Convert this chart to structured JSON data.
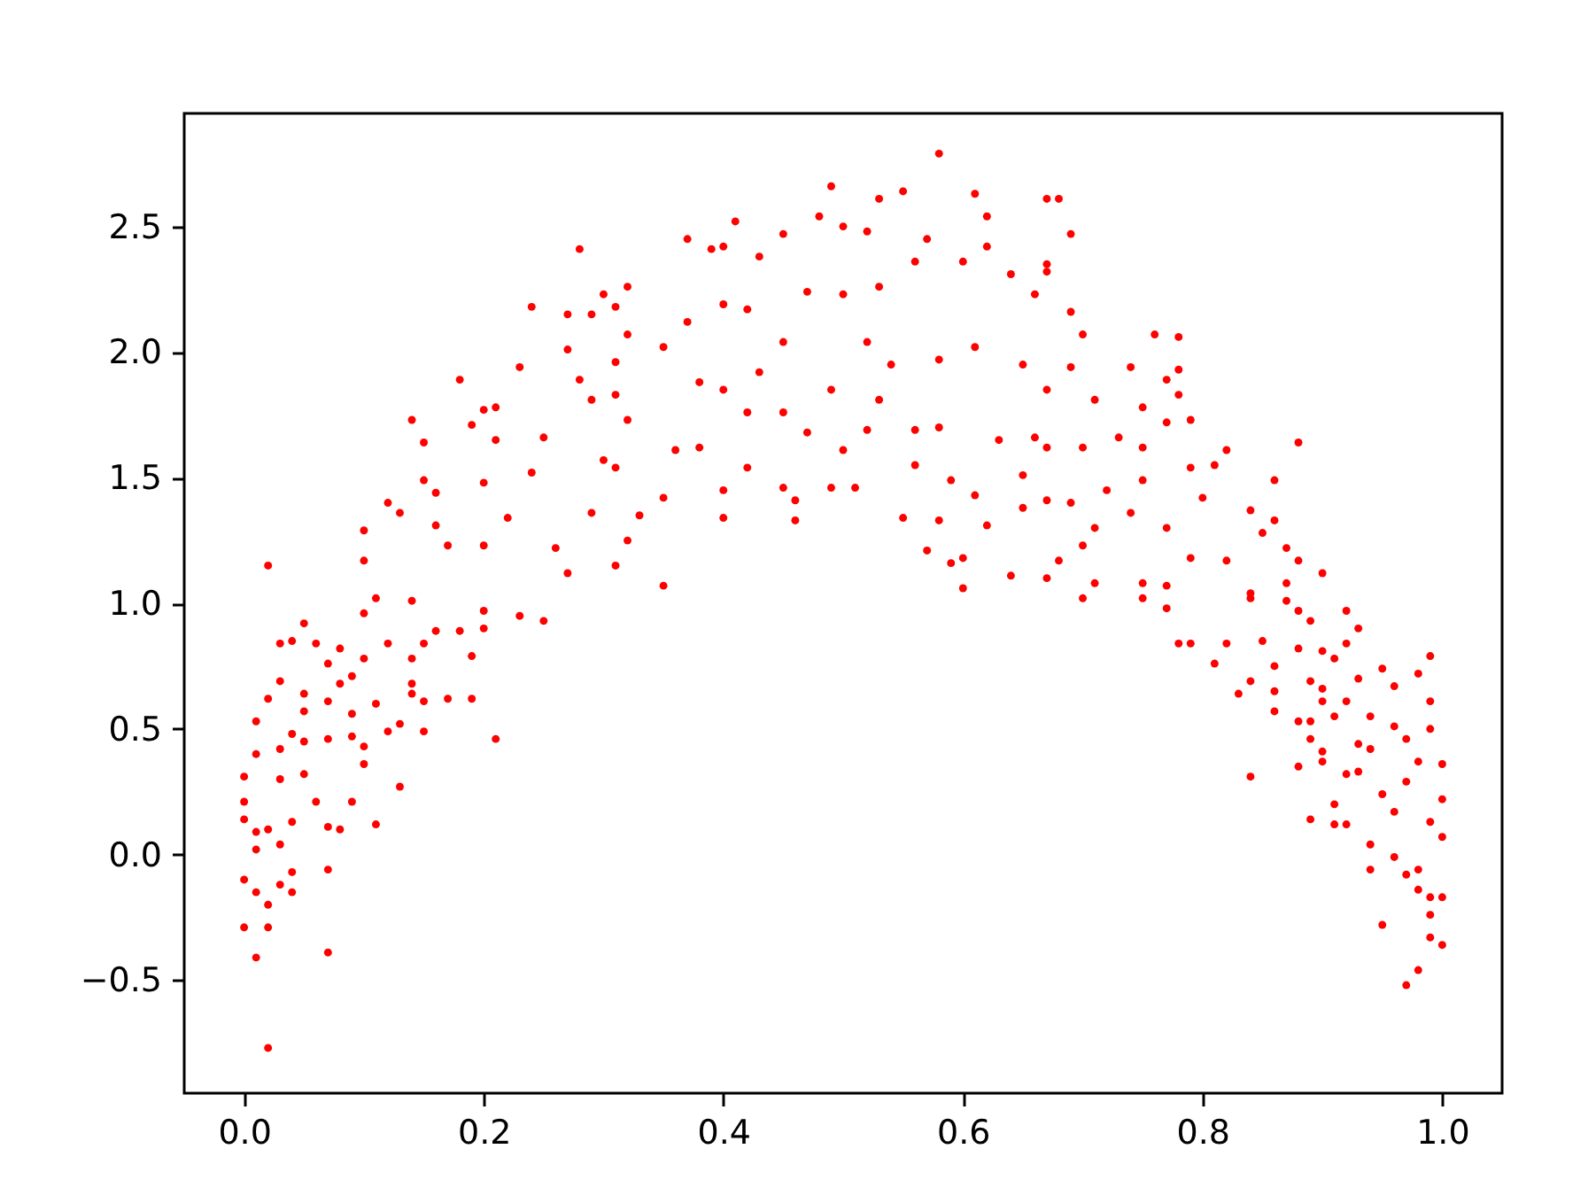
{
  "chart_data": {
    "type": "scatter",
    "color": "#ff0000",
    "marker": "circle",
    "xlim": [
      -0.05,
      1.05
    ],
    "ylim": [
      -0.95,
      2.95
    ],
    "xticks": [
      {
        "value": 0,
        "label": "0.0"
      },
      {
        "value": 0.2,
        "label": "0.2"
      },
      {
        "value": 0.4,
        "label": "0.4"
      },
      {
        "value": 0.6,
        "label": "0.6"
      },
      {
        "value": 0.8,
        "label": "0.8"
      },
      {
        "value": 1,
        "label": "1.0"
      }
    ],
    "yticks": [
      {
        "value": -0.5,
        "label": "−0.5"
      },
      {
        "value": 0,
        "label": "0.0"
      },
      {
        "value": 0.5,
        "label": "0.5"
      },
      {
        "value": 1,
        "label": "1.0"
      },
      {
        "value": 1.5,
        "label": "1.5"
      },
      {
        "value": 2,
        "label": "2.0"
      },
      {
        "value": 2.5,
        "label": "2.5"
      }
    ],
    "x": [
      0.02,
      0.01,
      0.07,
      0.0,
      0.02,
      0.02,
      0.0,
      0.01,
      0.03,
      0.04,
      0.04,
      0.07,
      0.01,
      0.03,
      0.0,
      0.0,
      0.0,
      0.01,
      0.01,
      0.02,
      0.01,
      0.02,
      0.04,
      0.07,
      0.08,
      0.11,
      0.13,
      0.1,
      0.09,
      0.06,
      0.05,
      0.03,
      0.03,
      0.04,
      0.05,
      0.07,
      0.09,
      0.1,
      0.12,
      0.13,
      0.15,
      0.21,
      0.17,
      0.19,
      0.19,
      0.15,
      0.14,
      0.14,
      0.08,
      0.07,
      0.05,
      0.03,
      0.05,
      0.09,
      0.11,
      0.03,
      0.04,
      0.05,
      0.06,
      0.07,
      0.08,
      0.09,
      0.1,
      0.12,
      0.14,
      0.15,
      0.16,
      0.18,
      0.2,
      0.23,
      0.25,
      0.1,
      0.11,
      0.14,
      0.2,
      0.02,
      0.1,
      0.1,
      0.12,
      0.13,
      0.15,
      0.14,
      0.15,
      0.18,
      0.2,
      0.21,
      0.24,
      0.27,
      0.28,
      0.3,
      0.29,
      0.27,
      0.23,
      0.21,
      0.19,
      0.16,
      0.16,
      0.17,
      0.2,
      0.22,
      0.2,
      0.24,
      0.27,
      0.26,
      0.29,
      0.3,
      0.29,
      0.25,
      0.28,
      0.37,
      0.41,
      0.49,
      0.53,
      0.55,
      0.58,
      0.61,
      0.62,
      0.62,
      0.67,
      0.48,
      0.5,
      0.52,
      0.57,
      0.4,
      0.39,
      0.45,
      0.43,
      0.32,
      0.31,
      0.32,
      0.37,
      0.4,
      0.42,
      0.47,
      0.5,
      0.53,
      0.56,
      0.6,
      0.64,
      0.66,
      0.67,
      0.31,
      0.31,
      0.32,
      0.31,
      0.33,
      0.32,
      0.31,
      0.35,
      0.35,
      0.4,
      0.4,
      0.42,
      0.45,
      0.46,
      0.46,
      0.49,
      0.51,
      0.55,
      0.57,
      0.58,
      0.59,
      0.6,
      0.6,
      0.59,
      0.61,
      0.62,
      0.64,
      0.65,
      0.67,
      0.67,
      0.65,
      0.36,
      0.38,
      0.42,
      0.45,
      0.47,
      0.5,
      0.52,
      0.56,
      0.56,
      0.58,
      0.63,
      0.66,
      0.38,
      0.4,
      0.43,
      0.49,
      0.53,
      0.58,
      0.61,
      0.65,
      0.67,
      0.35,
      0.45,
      0.52,
      0.54,
      0.68,
      0.69,
      0.67,
      0.69,
      0.7,
      0.76,
      0.78,
      0.78,
      0.78,
      0.74,
      0.77,
      0.71,
      0.69,
      0.75,
      0.79,
      0.77,
      0.82,
      0.88,
      0.86,
      0.81,
      0.79,
      0.75,
      0.73,
      0.7,
      0.67,
      0.69,
      0.72,
      0.75,
      0.8,
      0.84,
      0.86,
      0.87,
      0.9,
      0.88,
      0.85,
      0.82,
      0.79,
      0.77,
      0.74,
      0.71,
      0.7,
      0.68,
      0.71,
      0.75,
      0.77,
      0.84,
      0.87,
      0.7,
      0.75,
      0.77,
      0.78,
      0.79,
      0.81,
      0.83,
      0.84,
      0.86,
      0.88,
      0.89,
      0.91,
      0.92,
      0.91,
      0.94,
      0.94,
      0.95,
      0.96,
      0.97,
      0.98,
      0.98,
      0.99,
      1.0,
      0.99,
      0.99,
      1.0,
      0.98,
      0.97,
      1.0,
      0.99,
      1.0,
      0.99,
      0.99,
      0.99,
      1.0,
      0.98,
      0.95,
      0.96,
      0.94,
      0.93,
      0.92,
      0.96,
      0.97,
      0.98,
      0.97,
      0.96,
      0.95,
      0.93,
      0.92,
      0.9,
      0.9,
      0.94,
      0.93,
      0.89,
      0.89,
      0.91,
      0.9,
      0.9,
      0.89,
      0.88,
      0.86,
      0.84,
      0.86,
      0.88,
      0.9,
      0.91,
      0.92,
      0.93,
      0.92,
      0.89,
      0.88,
      0.87,
      0.84,
      0.85,
      0.82
    ],
    "values": [
      -0.77,
      -0.41,
      -0.39,
      -0.29,
      -0.29,
      -0.2,
      -0.1,
      -0.15,
      -0.12,
      -0.15,
      -0.07,
      -0.06,
      0.02,
      0.04,
      0.14,
      0.21,
      0.31,
      0.4,
      0.53,
      0.62,
      0.09,
      0.1,
      0.13,
      0.11,
      0.1,
      0.12,
      0.27,
      0.36,
      0.21,
      0.21,
      0.32,
      0.3,
      0.42,
      0.48,
      0.45,
      0.46,
      0.47,
      0.43,
      0.49,
      0.52,
      0.49,
      0.46,
      0.62,
      0.62,
      0.79,
      0.61,
      0.64,
      0.68,
      0.68,
      0.61,
      0.64,
      0.69,
      0.57,
      0.56,
      0.6,
      0.84,
      0.85,
      0.92,
      0.84,
      0.76,
      0.82,
      0.71,
      0.78,
      0.84,
      0.78,
      0.84,
      0.89,
      0.89,
      0.9,
      0.95,
      0.93,
      0.96,
      1.02,
      1.01,
      0.97,
      1.15,
      1.17,
      1.29,
      1.4,
      1.36,
      1.49,
      1.73,
      1.64,
      1.89,
      1.77,
      1.78,
      2.18,
      2.15,
      2.41,
      2.23,
      2.15,
      2.01,
      1.94,
      1.65,
      1.71,
      1.44,
      1.31,
      1.23,
      1.23,
      1.34,
      1.48,
      1.52,
      1.12,
      1.22,
      1.36,
      1.57,
      1.81,
      1.66,
      1.89,
      2.45,
      2.52,
      2.66,
      2.61,
      2.64,
      2.79,
      2.63,
      2.54,
      2.42,
      2.61,
      2.54,
      2.5,
      2.48,
      2.45,
      2.42,
      2.41,
      2.47,
      2.38,
      2.26,
      2.18,
      2.07,
      2.12,
      2.19,
      2.17,
      2.24,
      2.23,
      2.26,
      2.36,
      2.36,
      2.31,
      2.23,
      2.35,
      1.96,
      1.83,
      1.73,
      1.54,
      1.35,
      1.25,
      1.15,
      1.07,
      1.42,
      1.34,
      1.45,
      1.54,
      1.46,
      1.33,
      1.41,
      1.46,
      1.46,
      1.34,
      1.21,
      1.33,
      1.16,
      1.06,
      1.18,
      1.49,
      1.43,
      1.31,
      1.11,
      1.38,
      1.1,
      1.41,
      1.51,
      1.61,
      1.62,
      1.76,
      1.76,
      1.68,
      1.61,
      1.69,
      1.55,
      1.69,
      1.7,
      1.65,
      1.66,
      1.88,
      1.85,
      1.92,
      1.85,
      1.81,
      1.97,
      2.02,
      1.95,
      1.85,
      2.02,
      2.04,
      2.04,
      1.95,
      2.61,
      2.47,
      2.32,
      2.16,
      2.07,
      2.07,
      2.06,
      1.93,
      1.83,
      1.94,
      1.89,
      1.81,
      1.94,
      1.78,
      1.73,
      1.72,
      1.61,
      1.64,
      1.49,
      1.55,
      1.54,
      1.62,
      1.66,
      1.62,
      1.62,
      1.4,
      1.45,
      1.49,
      1.42,
      1.37,
      1.33,
      1.22,
      1.12,
      1.17,
      1.28,
      1.17,
      1.18,
      1.3,
      1.36,
      1.3,
      1.23,
      1.17,
      1.08,
      1.08,
      1.07,
      1.04,
      1.08,
      1.02,
      1.02,
      0.98,
      0.84,
      0.84,
      0.76,
      0.64,
      0.31,
      0.57,
      0.35,
      0.14,
      0.12,
      0.12,
      0.2,
      0.04,
      -0.06,
      -0.28,
      -0.01,
      -0.08,
      -0.06,
      -0.14,
      -0.17,
      -0.17,
      -0.24,
      -0.33,
      -0.36,
      -0.46,
      -0.52,
      0.07,
      0.13,
      0.22,
      0.79,
      0.61,
      0.5,
      0.36,
      0.72,
      0.74,
      0.67,
      0.55,
      0.7,
      0.61,
      0.51,
      0.46,
      0.37,
      0.29,
      0.17,
      0.24,
      0.33,
      0.32,
      0.37,
      0.41,
      0.42,
      0.44,
      0.46,
      0.53,
      0.55,
      0.61,
      0.66,
      0.69,
      0.53,
      0.65,
      0.69,
      0.75,
      0.82,
      0.81,
      0.78,
      0.84,
      0.9,
      0.97,
      0.93,
      0.97,
      1.01,
      1.02,
      0.85,
      0.84
    ]
  }
}
